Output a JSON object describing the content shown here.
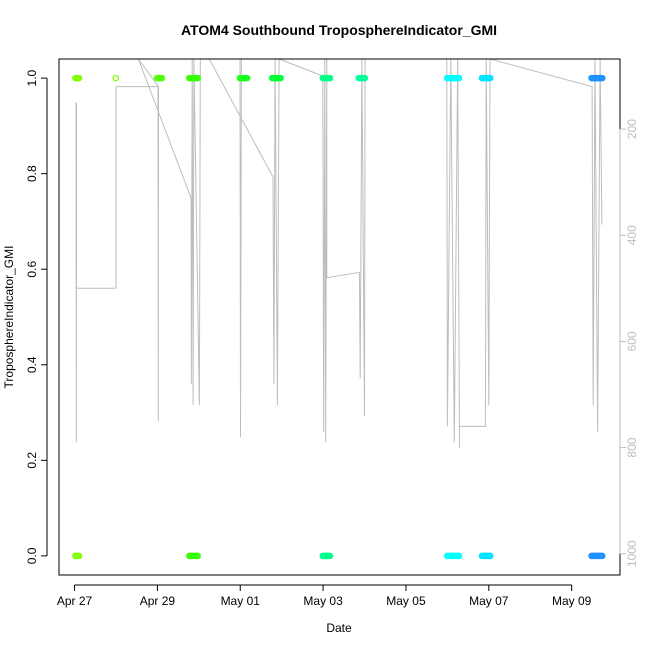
{
  "chart_data": {
    "type": "scatter",
    "title": "ATOM4 Southbound TroposphereIndicator_GMI",
    "xlabel": "Date",
    "ylabel": "TroposphereIndicator_GMI",
    "x_tick_labels": [
      "Apr 27",
      "Apr 29",
      "May 01",
      "May 03",
      "May 05",
      "May 07",
      "May 09"
    ],
    "x_tick_dates": [
      "2016-04-27",
      "2016-04-29",
      "2016-05-01",
      "2016-05-03",
      "2016-05-05",
      "2016-05-07",
      "2016-05-09"
    ],
    "xlim": [
      "2016-04-26 15:00",
      "2016-05-10 04:00"
    ],
    "ylim": [
      -0.04,
      1.04
    ],
    "y_ticks": [
      0.0,
      0.2,
      0.4,
      0.6,
      0.8,
      1.0
    ],
    "y_tick_labels": [
      "0.0",
      "0.2",
      "0.4",
      "0.6",
      "0.8",
      "1.0"
    ],
    "secondary_axis": {
      "label": "",
      "color": "#bdbdbd",
      "reversed": true,
      "ticks": [
        200,
        400,
        600,
        800,
        1000
      ],
      "tick_labels": [
        "200",
        "400",
        "600",
        "800",
        "1000"
      ],
      "ylim_top_to_bottom": [
        68,
        1040
      ]
    },
    "grid": false,
    "legend": "none",
    "marker": "open-circle",
    "points_series": [
      {
        "x_start": "2016-04-27 00:30",
        "x_end": "2016-04-27 03:00",
        "values": [
          1,
          0
        ],
        "color": "#7fff00"
      },
      {
        "x_start": "2016-04-27 23:50",
        "x_end": "2016-04-28 00:20",
        "values": [
          1
        ],
        "color": "#7fff00"
      },
      {
        "x_start": "2016-04-28 23:50",
        "x_end": "2016-04-29 03:00",
        "values": [
          1
        ],
        "color": "#4cff00"
      },
      {
        "x_start": "2016-04-29 18:30",
        "x_end": "2016-04-30 00:00",
        "values": [
          1,
          0
        ],
        "color": "#33ff00"
      },
      {
        "x_start": "2016-04-30 23:50",
        "x_end": "2016-05-01 04:00",
        "values": [
          1
        ],
        "color": "#1aff1a"
      },
      {
        "x_start": "2016-05-01 18:30",
        "x_end": "2016-05-01 23:30",
        "values": [
          1
        ],
        "color": "#00ff33"
      },
      {
        "x_start": "2016-05-02 23:50",
        "x_end": "2016-05-03 04:30",
        "values": [
          1,
          0
        ],
        "color": "#00ff88"
      },
      {
        "x_start": "2016-05-03 20:40",
        "x_end": "2016-05-04 00:30",
        "values": [
          1
        ],
        "color": "#00ff99"
      },
      {
        "x_start": "2016-05-05 23:50",
        "x_end": "2016-05-06 07:00",
        "values": [
          1,
          0
        ],
        "color": "#00ffff"
      },
      {
        "x_start": "2016-05-06 20:00",
        "x_end": "2016-05-07 01:00",
        "values": [
          1,
          0
        ],
        "color": "#00e5ff"
      },
      {
        "x_start": "2016-05-09 11:30",
        "x_end": "2016-05-09 18:00",
        "values": [
          1,
          0
        ],
        "color": "#1e90ff"
      }
    ],
    "pressure_profile": {
      "color": "#bdbdbd",
      "description_points": [
        [
          "2016-04-27 00:50",
          150
        ],
        [
          "2016-04-27 01:00",
          790
        ],
        [
          "2016-04-27 01:10",
          150
        ],
        [
          "2016-04-27 01:10",
          500
        ],
        [
          "2016-04-28 00:00",
          500
        ],
        [
          "2016-04-28 00:00",
          120
        ],
        [
          "2016-04-29 00:20",
          120
        ],
        [
          "2016-04-29 00:30",
          750
        ],
        [
          "2016-04-29 00:40",
          120
        ],
        [
          "2016-04-28 13:00",
          68
        ],
        [
          "2016-04-29 19:30",
          330
        ],
        [
          "2016-04-29 19:40",
          680
        ],
        [
          "2016-04-29 20:10",
          68
        ],
        [
          "2016-04-29 20:40",
          720
        ],
        [
          "2016-04-29 21:10",
          68
        ],
        [
          "2016-04-30 00:20",
          720
        ],
        [
          "2016-04-30 00:50",
          68
        ],
        [
          "2016-04-30 23:50",
          68
        ],
        [
          "2016-05-01 00:10",
          780
        ],
        [
          "2016-05-01 00:40",
          68
        ],
        [
          "2016-04-30 06:00",
          68
        ],
        [
          "2016-05-01 19:00",
          290
        ],
        [
          "2016-05-01 19:30",
          680
        ],
        [
          "2016-05-01 20:10",
          68
        ],
        [
          "2016-05-01 21:30",
          720
        ],
        [
          "2016-05-01 22:30",
          68
        ],
        [
          "2016-05-02 23:50",
          100
        ],
        [
          "2016-05-03 00:20",
          770
        ],
        [
          "2016-05-03 01:00",
          68
        ],
        [
          "2016-05-03 01:30",
          790
        ],
        [
          "2016-05-03 02:10",
          68
        ],
        [
          "2016-05-03 02:10",
          480
        ],
        [
          "2016-05-03 21:00",
          470
        ],
        [
          "2016-05-03 21:30",
          670
        ],
        [
          "2016-05-03 22:30",
          68
        ],
        [
          "2016-05-04 00:00",
          740
        ],
        [
          "2016-05-04 00:20",
          68
        ],
        [
          "2016-05-05 23:40",
          68
        ],
        [
          "2016-05-06 00:00",
          760
        ],
        [
          "2016-05-06 02:00",
          68
        ],
        [
          "2016-05-06 04:00",
          790
        ],
        [
          "2016-05-06 06:00",
          68
        ],
        [
          "2016-05-06 07:00",
          800
        ],
        [
          "2016-05-06 07:00",
          760
        ],
        [
          "2016-05-06 22:00",
          760
        ],
        [
          "2016-05-06 22:30",
          68
        ],
        [
          "2016-05-07 00:00",
          720
        ],
        [
          "2016-05-07 00:40",
          68
        ],
        [
          "2016-05-09 11:50",
          120
        ],
        [
          "2016-05-09 12:30",
          720
        ],
        [
          "2016-05-09 13:30",
          68
        ],
        [
          "2016-05-09 15:00",
          770
        ],
        [
          "2016-05-09 16:30",
          68
        ],
        [
          "2016-05-09 17:30",
          380
        ]
      ]
    }
  }
}
